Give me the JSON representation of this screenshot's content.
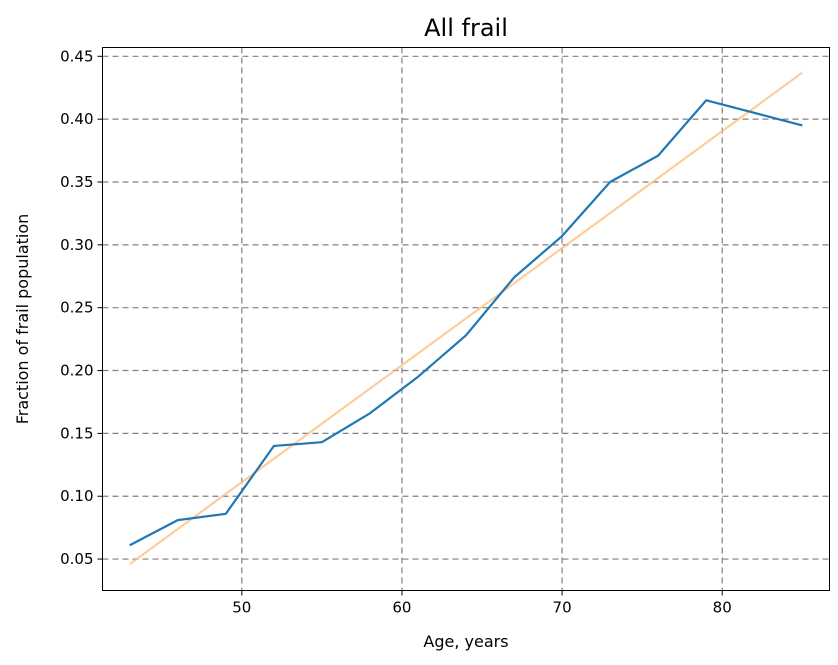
{
  "chart_data": {
    "type": "line",
    "title": "All frail",
    "xlabel": "Age, years",
    "ylabel": "Fraction of frail population",
    "xlim": [
      41.3,
      86.7
    ],
    "ylim": [
      0.025,
      0.457
    ],
    "xticks": [
      50,
      60,
      70,
      80
    ],
    "yticks": [
      0.05,
      0.1,
      0.15,
      0.2,
      0.25,
      0.3,
      0.35,
      0.4,
      0.45
    ],
    "grid": true,
    "series": [
      {
        "color": "#1f77b4",
        "x": [
          43,
          46,
          49,
          52,
          55,
          58,
          61,
          64,
          67,
          70,
          73,
          76,
          79,
          82,
          85
        ],
        "y": [
          0.061,
          0.081,
          0.086,
          0.14,
          0.143,
          0.166,
          0.195,
          0.228,
          0.274,
          0.307,
          0.35,
          0.371,
          0.415,
          0.405,
          0.395
        ]
      },
      {
        "color": "#ffbb78",
        "x": [
          43,
          85
        ],
        "y": [
          0.046,
          0.437
        ]
      }
    ]
  }
}
